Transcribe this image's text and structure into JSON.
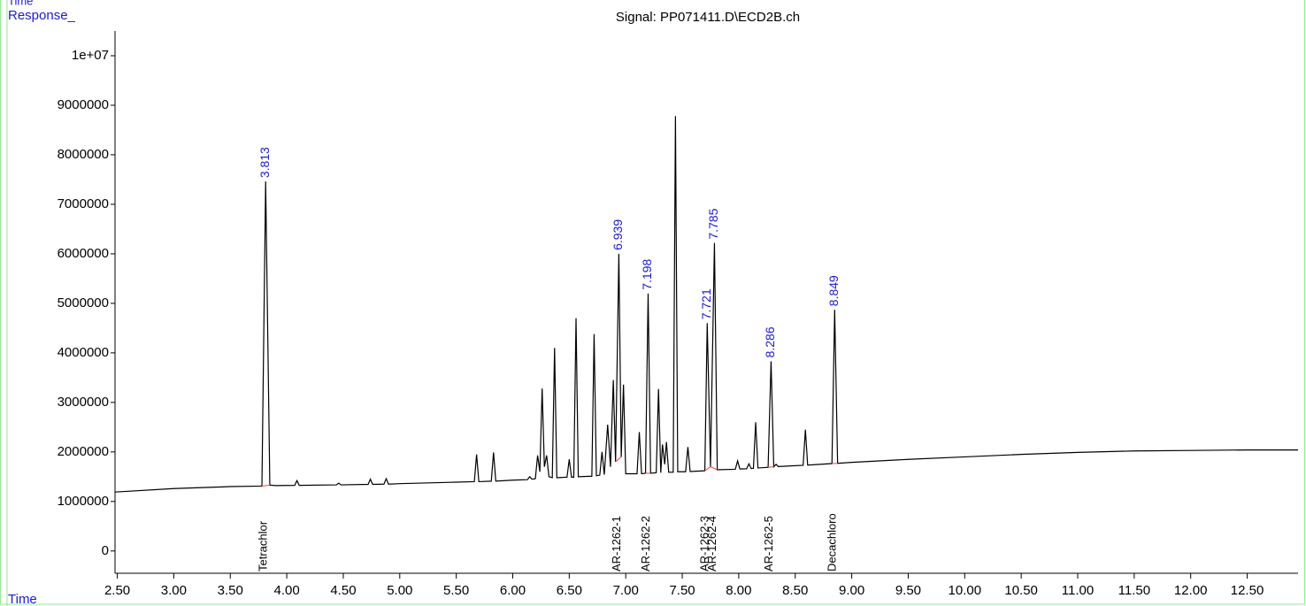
{
  "chart_data": {
    "type": "line",
    "title": "Signal: PP071411.D\\ECD2B.ch",
    "ylabel": "Response_",
    "xlabel": "Time",
    "top_label": "Time",
    "color": "#000000",
    "xlim": [
      2.48,
      12.95
    ],
    "xticks": [
      {
        "value": 2.5,
        "label": "2.50"
      },
      {
        "value": 3,
        "label": "3.00"
      },
      {
        "value": 3.5,
        "label": "3.50"
      },
      {
        "value": 4,
        "label": "4.00"
      },
      {
        "value": 4.5,
        "label": "4.50"
      },
      {
        "value": 5,
        "label": "5.00"
      },
      {
        "value": 5.5,
        "label": "5.50"
      },
      {
        "value": 6,
        "label": "6.00"
      },
      {
        "value": 6.5,
        "label": "6.50"
      },
      {
        "value": 7,
        "label": "7.00"
      },
      {
        "value": 7.5,
        "label": "7.50"
      },
      {
        "value": 8,
        "label": "8.00"
      },
      {
        "value": 8.5,
        "label": "8.50"
      },
      {
        "value": 9,
        "label": "9.00"
      },
      {
        "value": 9.5,
        "label": "9.50"
      },
      {
        "value": 10,
        "label": "10.00"
      },
      {
        "value": 10.5,
        "label": "10.50"
      },
      {
        "value": 11,
        "label": "11.00"
      },
      {
        "value": 11.5,
        "label": "11.50"
      },
      {
        "value": 12,
        "label": "12.00"
      },
      {
        "value": 12.5,
        "label": "12.50"
      }
    ],
    "ylim": [
      -450000,
      10500000
    ],
    "yticks": [
      0,
      1000000,
      2000000,
      3000000,
      4000000,
      5000000,
      6000000,
      7000000,
      8000000,
      9000000,
      {
        "value": 10000000,
        "label": "1e+07"
      }
    ],
    "x": [
      2.48,
      3.0,
      3.5,
      3.78,
      3.813,
      3.85,
      3.9,
      4.07,
      4.09,
      4.11,
      4.44,
      4.46,
      4.48,
      4.72,
      4.74,
      4.76,
      4.86,
      4.88,
      4.9,
      5.0,
      5.5,
      5.66,
      5.68,
      5.7,
      5.81,
      5.83,
      5.85,
      6.0,
      6.13,
      6.15,
      6.17,
      6.2,
      6.22,
      6.24,
      6.26,
      6.28,
      6.3,
      6.32,
      6.35,
      6.37,
      6.39,
      6.48,
      6.5,
      6.52,
      6.54,
      6.56,
      6.58,
      6.7,
      6.72,
      6.74,
      6.77,
      6.79,
      6.81,
      6.84,
      6.865,
      6.89,
      6.91,
      6.939,
      6.96,
      6.98,
      7.0,
      7.1,
      7.12,
      7.14,
      7.175,
      7.198,
      7.22,
      7.27,
      7.29,
      7.31,
      7.325,
      7.345,
      7.36,
      7.38,
      7.42,
      7.44,
      7.46,
      7.53,
      7.55,
      7.57,
      7.7,
      7.721,
      7.75,
      7.785,
      7.81,
      7.97,
      7.99,
      8.01,
      8.07,
      8.09,
      8.11,
      8.13,
      8.15,
      8.17,
      8.26,
      8.286,
      8.31,
      8.33,
      8.35,
      8.57,
      8.59,
      8.61,
      8.825,
      8.849,
      8.875,
      9.0,
      9.5,
      10.0,
      10.5,
      11.0,
      11.5,
      12.0,
      12.5,
      12.95
    ],
    "values": [
      1190000,
      1260000,
      1300000,
      1310000,
      7460000,
      1330000,
      1320000,
      1325000,
      1420000,
      1325000,
      1335000,
      1370000,
      1335000,
      1345000,
      1450000,
      1345000,
      1350000,
      1460000,
      1350000,
      1360000,
      1390000,
      1400000,
      1950000,
      1400000,
      1410000,
      1990000,
      1410000,
      1430000,
      1440000,
      1500000,
      1450000,
      1460000,
      1930000,
      1600000,
      3280000,
      1700000,
      1930000,
      1500000,
      1480000,
      4100000,
      1480000,
      1490000,
      1850000,
      1490000,
      1490000,
      4700000,
      1500000,
      1510000,
      4380000,
      1520000,
      1530000,
      2000000,
      1540000,
      2550000,
      1700000,
      3450000,
      1800000,
      6000000,
      1900000,
      3360000,
      1560000,
      1560000,
      2400000,
      1560000,
      1570000,
      5200000,
      1570000,
      1580000,
      3270000,
      1580000,
      2150000,
      1750000,
      2200000,
      1590000,
      1590000,
      8780000,
      1600000,
      1600000,
      2100000,
      1605000,
      1620000,
      4600000,
      1700000,
      6220000,
      1640000,
      1650000,
      1820000,
      1655000,
      1660000,
      1760000,
      1665000,
      1670000,
      2600000,
      1675000,
      1690000,
      3830000,
      1700000,
      1750000,
      1705000,
      1730000,
      2450000,
      1735000,
      1765000,
      4870000,
      1770000,
      1790000,
      1850000,
      1900000,
      1950000,
      1990000,
      2020000,
      2030000,
      2040000,
      2040000
    ],
    "peaks": [
      {
        "rt": 3.813,
        "compound": "Tetrachlor"
      },
      {
        "rt": 6.939,
        "compound": "AR-1262-1"
      },
      {
        "rt": 7.198,
        "compound": "AR-1262-2"
      },
      {
        "rt": 7.721,
        "compound": "AR-1262-3"
      },
      {
        "rt": 7.785,
        "compound": "AR-1262-4"
      },
      {
        "rt": 8.286,
        "compound": "AR-1262-5"
      },
      {
        "rt": 8.849,
        "compound": "Decachloro"
      }
    ]
  }
}
